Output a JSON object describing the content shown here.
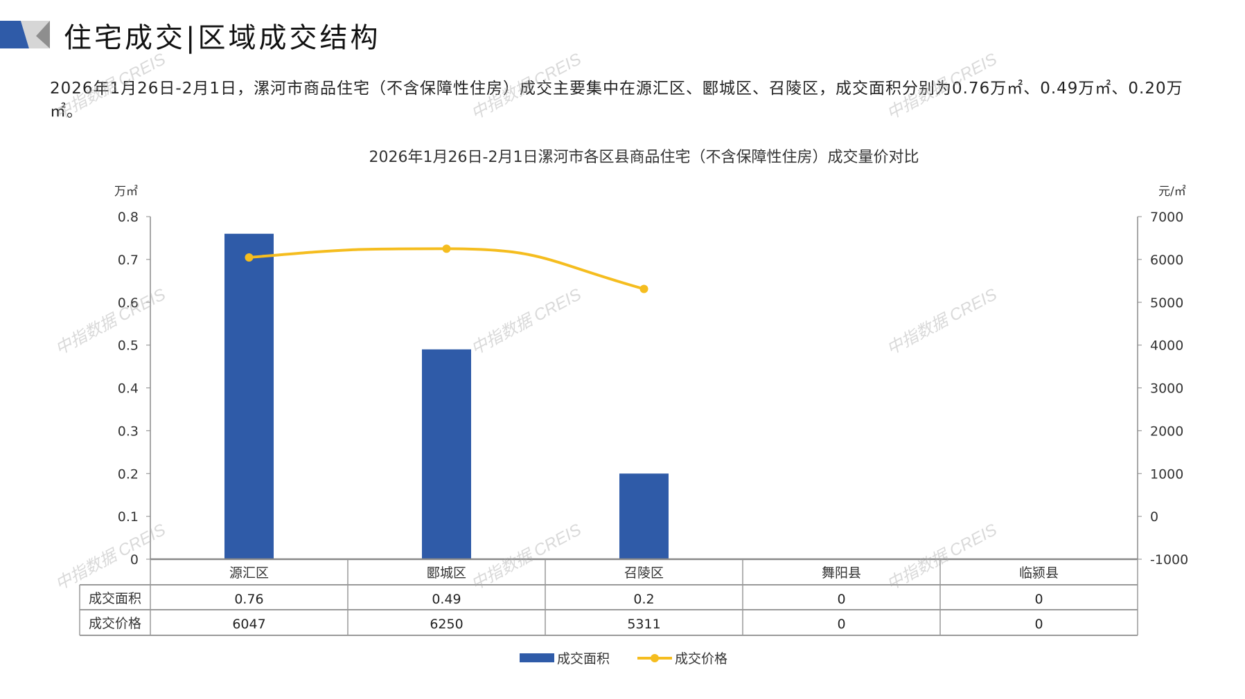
{
  "header": {
    "title": "住宅成交|区域成交结构"
  },
  "summary": "2026年1月26日-2月1日，漯河市商品住宅（不含保障性住房）成交主要集中在源汇区、郾城区、召陵区，成交面积分别为0.76万㎡、0.49万㎡、0.20万㎡。",
  "watermark": "中指数据 CREIS",
  "colors": {
    "bar": "#2f5ba8",
    "line": "#f5bd1f",
    "logo_blue": "#2f5ba8",
    "logo_gray": "#9a9a9a"
  },
  "chart_data": {
    "type": "bar+line",
    "title": "2026年1月26日-2月1日漯河市各区县商品住宅（不含保障性住房）成交量价对比",
    "categories": [
      "源汇区",
      "郾城区",
      "召陵区",
      "舞阳县",
      "临颍县"
    ],
    "left_axis": {
      "unit": "万㎡",
      "min": 0,
      "max": 0.8,
      "ticks": [
        "0",
        "0.1",
        "0.2",
        "0.3",
        "0.4",
        "0.5",
        "0.6",
        "0.7",
        "0.8"
      ]
    },
    "right_axis": {
      "unit": "元/㎡",
      "min": -1000,
      "max": 7000,
      "ticks": [
        "-1000",
        "0",
        "1000",
        "2000",
        "3000",
        "4000",
        "5000",
        "6000",
        "7000"
      ]
    },
    "series": [
      {
        "name": "成交面积",
        "type": "bar",
        "axis": "left",
        "values": [
          0.76,
          0.49,
          0.2,
          0,
          0
        ],
        "labels": [
          "0.76",
          "0.49",
          "0.2",
          "0",
          "0"
        ]
      },
      {
        "name": "成交价格",
        "type": "line",
        "axis": "right",
        "values": [
          6047,
          6250,
          5311,
          null,
          null
        ],
        "labels": [
          "6047",
          "6250",
          "5311",
          "0",
          "0"
        ]
      }
    ],
    "grid": false,
    "legend": "bottom",
    "data_table": true
  }
}
